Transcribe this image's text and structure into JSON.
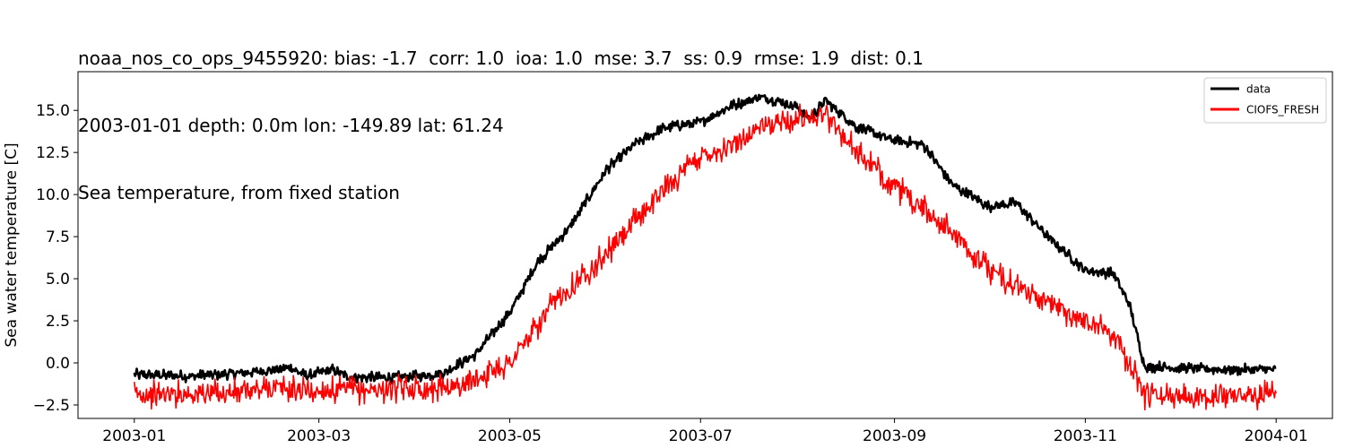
{
  "title_lines": [
    "noaa_nos_co_ops_9455920: bias: -1.7  corr: 1.0  ioa: 1.0  mse: 3.7  ss: 0.9  rmse: 1.9  dist: 0.1",
    "2003-01-01 depth: 0.0m lon: -149.89 lat: 61.24",
    "Sea temperature, from fixed station"
  ],
  "chart_data": {
    "type": "line",
    "title": "noaa_nos_co_ops_9455920: bias: -1.7  corr: 1.0  ioa: 1.0  mse: 3.7  ss: 0.9  rmse: 1.9  dist: 0.1\n2003-01-01 depth: 0.0m lon: -149.89 lat: 61.24\nSea temperature, from fixed station",
    "xlabel": "",
    "ylabel": "Sea water temperature [C]",
    "xlim": [
      "2002-12-14",
      "2004-01-19"
    ],
    "ylim": [
      -3.3,
      17.3
    ],
    "x_ticks": [
      "2003-01",
      "2003-03",
      "2003-05",
      "2003-07",
      "2003-09",
      "2003-11",
      "2004-01"
    ],
    "y_ticks": [
      -2.5,
      0.0,
      2.5,
      5.0,
      7.5,
      10.0,
      12.5,
      15.0
    ],
    "y_tick_labels": [
      "−2.5",
      "0.0",
      "2.5",
      "5.0",
      "7.5",
      "10.0",
      "12.5",
      "15.0"
    ],
    "legend": {
      "position": "top-right"
    },
    "grid": false,
    "series": [
      {
        "name": "data",
        "color": "#000000",
        "noise": 0.2,
        "x": [
          "2003-01-01",
          "2003-01-20",
          "2003-02-10",
          "2003-02-20",
          "2003-02-25",
          "2003-03-01",
          "2003-03-05",
          "2003-03-10",
          "2003-03-20",
          "2003-04-01",
          "2003-04-10",
          "2003-04-20",
          "2003-05-01",
          "2003-05-10",
          "2003-05-20",
          "2003-06-01",
          "2003-06-10",
          "2003-06-20",
          "2003-07-01",
          "2003-07-10",
          "2003-07-20",
          "2003-07-25",
          "2003-08-01",
          "2003-08-05",
          "2003-08-10",
          "2003-08-20",
          "2003-09-01",
          "2003-09-10",
          "2003-09-20",
          "2003-10-01",
          "2003-10-10",
          "2003-10-20",
          "2003-11-01",
          "2003-11-10",
          "2003-11-15",
          "2003-11-20",
          "2003-12-01",
          "2003-12-15",
          "2004-01-01"
        ],
        "y": [
          -0.7,
          -0.8,
          -0.5,
          -0.3,
          -0.8,
          -0.6,
          -0.4,
          -0.8,
          -0.9,
          -0.8,
          -0.6,
          0.5,
          3.0,
          6.0,
          8.0,
          11.5,
          13.0,
          14.0,
          14.3,
          15.2,
          15.8,
          15.6,
          15.2,
          14.5,
          15.6,
          14.0,
          13.2,
          13.0,
          10.5,
          9.3,
          9.5,
          7.5,
          5.5,
          5.3,
          3.5,
          -0.2,
          -0.3,
          -0.4,
          -0.4
        ]
      },
      {
        "name": "CIOFS_FRESH",
        "color": "#ff0000",
        "noise": 0.5,
        "x": [
          "2003-01-01",
          "2003-02-01",
          "2003-02-15",
          "2003-03-01",
          "2003-03-15",
          "2003-04-01",
          "2003-04-15",
          "2003-05-01",
          "2003-05-15",
          "2003-06-01",
          "2003-06-15",
          "2003-07-01",
          "2003-07-10",
          "2003-07-20",
          "2003-08-01",
          "2003-08-10",
          "2003-08-20",
          "2003-09-01",
          "2003-09-15",
          "2003-10-01",
          "2003-10-15",
          "2003-11-01",
          "2003-11-10",
          "2003-11-20",
          "2003-12-01",
          "2004-01-01"
        ],
        "y": [
          -1.9,
          -1.8,
          -1.5,
          -1.7,
          -1.6,
          -1.5,
          -1.4,
          0.0,
          3.5,
          6.5,
          9.5,
          12.3,
          12.8,
          14.0,
          14.5,
          14.8,
          12.5,
          10.5,
          8.5,
          5.5,
          4.0,
          2.5,
          1.8,
          -1.9,
          -1.9,
          -1.9
        ]
      }
    ]
  }
}
